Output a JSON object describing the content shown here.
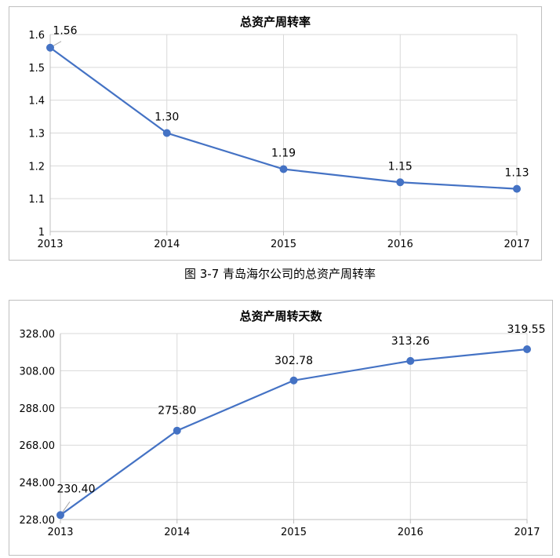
{
  "chart_data": [
    {
      "type": "line",
      "title": "总资产周转率",
      "categories": [
        "2013",
        "2014",
        "2015",
        "2016",
        "2017"
      ],
      "values": [
        1.56,
        1.3,
        1.19,
        1.15,
        1.13
      ],
      "data_labels": [
        "1.56",
        "1.30",
        "1.19",
        "1.15",
        "1.13"
      ],
      "ylim": [
        1,
        1.6
      ],
      "yticks": [
        1,
        1.1,
        1.2,
        1.3,
        1.4,
        1.5,
        1.6
      ],
      "ytick_labels": [
        "1",
        "1.1",
        "1.2",
        "1.3",
        "1.4",
        "1.5",
        "1.6"
      ],
      "grid": true,
      "line_color": "#4472c4"
    },
    {
      "type": "line",
      "title": "总资产周转天数",
      "categories": [
        "2013",
        "2014",
        "2015",
        "2016",
        "2017"
      ],
      "values": [
        230.4,
        275.8,
        302.78,
        313.26,
        319.55
      ],
      "data_labels": [
        "230.40",
        "275.80",
        "302.78",
        "313.26",
        "319.55"
      ],
      "ylim": [
        228,
        328
      ],
      "yticks": [
        228,
        248,
        268,
        288,
        308,
        328
      ],
      "ytick_labels": [
        "228.00",
        "248.00",
        "268.00",
        "288.00",
        "308.00",
        "328.00"
      ],
      "grid": true,
      "line_color": "#4472c4"
    }
  ],
  "caption": "图 3-7 青岛海尔公司的总资产周转率"
}
